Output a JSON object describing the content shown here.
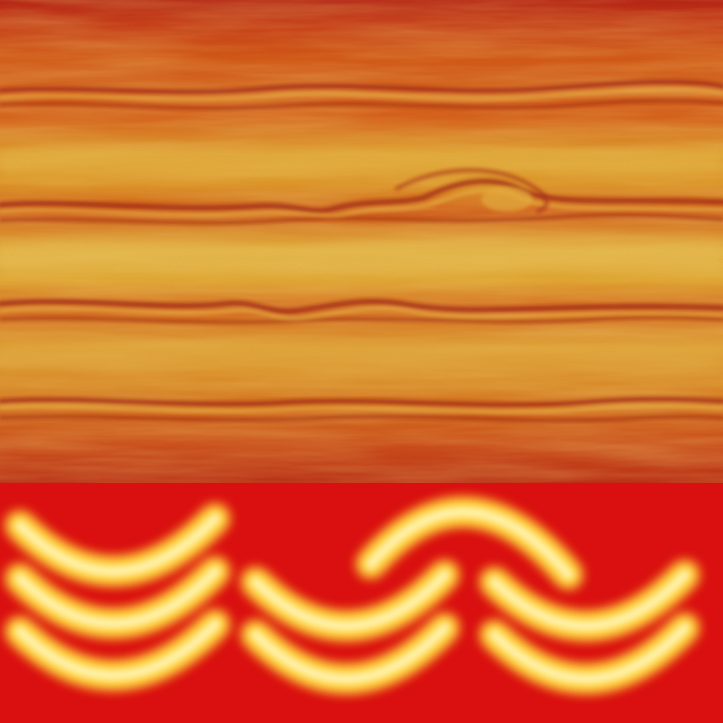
{
  "colors": {
    "band_dark": "#b3120c",
    "band_mid": "#d4500f",
    "band_orange": "#e07a12",
    "band_light": "#e2a22a",
    "band_pale": "#e6b838",
    "crest_dark": "#9a1408",
    "crest_highlight": "#f0c046",
    "arc_background": "#d90f10",
    "arc_core": "#fff3b0",
    "arc_glow": "#ffd23c",
    "arc_edge": "#f07a1a"
  },
  "panels": {
    "top": "banded-texture",
    "bottom": "glowing-arcs"
  }
}
